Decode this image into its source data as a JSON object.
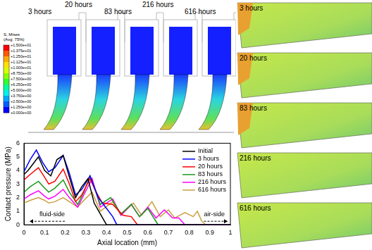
{
  "chart_data": {
    "type": "line",
    "xlabel": "Axial location (mm)",
    "ylabel": "Contact pressure (MPa)",
    "xlim": [
      0,
      1
    ],
    "xticks": [
      0,
      0.1,
      0.2,
      0.3,
      0.4,
      0.5,
      0.6,
      0.7,
      0.8,
      0.9,
      1
    ],
    "ylim": [
      0,
      6
    ],
    "yticks": [
      0,
      1,
      2,
      3,
      4,
      5,
      6
    ],
    "grid": false,
    "legend": "upper right",
    "annotations": [
      "fluid-side",
      "air-side"
    ],
    "series": [
      {
        "name": "Initial",
        "color": "#000000",
        "x": [
          0,
          0.02,
          0.04,
          0.07,
          0.1,
          0.13,
          0.16,
          0.19,
          0.22,
          0.25,
          0.28,
          0.31,
          0.34,
          0.37,
          0.4,
          1
        ],
        "values": [
          3.7,
          4.0,
          4.4,
          5.0,
          4.0,
          3.6,
          4.8,
          5.1,
          3.5,
          2.0,
          2.8,
          3.4,
          1.6,
          0.8,
          0,
          0
        ]
      },
      {
        "name": "3 hours",
        "color": "#0000ff",
        "x": [
          0,
          0.03,
          0.06,
          0.09,
          0.12,
          0.15,
          0.19,
          0.22,
          0.25,
          0.28,
          0.32,
          0.36,
          0.4,
          0.43,
          0.45,
          1
        ],
        "values": [
          3.9,
          4.8,
          5.5,
          4.6,
          3.9,
          4.2,
          5.1,
          3.8,
          2.2,
          2.6,
          3.6,
          2.0,
          1.2,
          0.6,
          0,
          0
        ]
      },
      {
        "name": "20 hours",
        "color": "#ff0000",
        "x": [
          0,
          0.03,
          0.07,
          0.1,
          0.12,
          0.15,
          0.19,
          0.22,
          0.25,
          0.28,
          0.32,
          0.35,
          0.38,
          0.43,
          0.48,
          0.52,
          0.55,
          1
        ],
        "values": [
          3.3,
          3.7,
          4.2,
          3.5,
          3.0,
          3.2,
          4.1,
          3.0,
          1.7,
          2.2,
          3.4,
          2.4,
          1.6,
          1.5,
          0.7,
          0.6,
          0,
          0
        ]
      },
      {
        "name": "83 hours",
        "color": "#1a9a1a",
        "x": [
          0,
          0.03,
          0.07,
          0.1,
          0.12,
          0.15,
          0.19,
          0.22,
          0.26,
          0.29,
          0.32,
          0.37,
          0.42,
          0.47,
          0.52,
          0.56,
          0.6,
          0.65,
          1
        ],
        "values": [
          2.4,
          2.8,
          3.2,
          2.7,
          2.4,
          2.7,
          3.3,
          2.4,
          1.5,
          2.4,
          3.6,
          1.5,
          2.0,
          0.8,
          1.5,
          0.6,
          1.2,
          0,
          0
        ]
      },
      {
        "name": "216 hours",
        "color": "#ff00ff",
        "x": [
          0,
          0.03,
          0.07,
          0.1,
          0.12,
          0.15,
          0.19,
          0.22,
          0.26,
          0.29,
          0.33,
          0.37,
          0.43,
          0.47,
          0.52,
          0.56,
          0.6,
          0.64,
          0.68,
          0.72,
          0.75,
          0.78,
          1
        ],
        "values": [
          1.9,
          2.2,
          2.5,
          2.1,
          1.9,
          2.1,
          2.6,
          2.0,
          1.3,
          2.2,
          3.4,
          1.3,
          1.9,
          0.7,
          1.5,
          0.6,
          1.3,
          0.5,
          1.1,
          0.5,
          0.5,
          0,
          0
        ]
      },
      {
        "name": "616 hours",
        "color": "#c8a040",
        "x": [
          0,
          0.03,
          0.07,
          0.1,
          0.12,
          0.15,
          0.19,
          0.22,
          0.26,
          0.29,
          0.33,
          0.37,
          0.43,
          0.47,
          0.53,
          0.57,
          0.62,
          0.66,
          0.7,
          0.73,
          0.78,
          0.82,
          0.84,
          0.86,
          0.88,
          1
        ],
        "values": [
          1.6,
          1.8,
          2.0,
          1.8,
          1.6,
          1.7,
          2.0,
          1.7,
          1.3,
          1.8,
          2.4,
          1.0,
          1.7,
          0.7,
          1.6,
          0.7,
          1.7,
          0.6,
          1.1,
          0.5,
          0.9,
          0.6,
          1.0,
          0.3,
          0,
          0
        ]
      }
    ]
  },
  "contour_plots": {
    "labels": [
      "3 hours",
      "20 hours",
      "83 hours",
      "216 hours",
      "616 hours"
    ],
    "colorbar": {
      "title": "S, Mises",
      "subtitle": "(Avg: 75%)",
      "range": [
        0,
        15
      ],
      "ticks": [
        {
          "value": 15,
          "label": "+1.500e+01"
        },
        {
          "value": 13.75,
          "label": "+1.375e+01"
        },
        {
          "value": 12.5,
          "label": "+1.250e+01"
        },
        {
          "value": 11.25,
          "label": "+1.125e+01"
        },
        {
          "value": 10,
          "label": "+1.000e+01"
        },
        {
          "value": 8.75,
          "label": "+8.750e+00"
        },
        {
          "value": 7.5,
          "label": "+7.500e+00"
        },
        {
          "value": 6.25,
          "label": "+6.250e+00"
        },
        {
          "value": 5,
          "label": "+5.000e+00"
        },
        {
          "value": 3.75,
          "label": "+3.750e+00"
        },
        {
          "value": 2.5,
          "label": "+2.500e+00"
        },
        {
          "value": 1.25,
          "label": "+1.250e+00"
        },
        {
          "value": 0,
          "label": "+0.000e+00"
        }
      ]
    }
  },
  "zoom_plots": {
    "labels": [
      "3 hours",
      "20 hours",
      "83 hours",
      "216 hours",
      "616 hours"
    ]
  }
}
